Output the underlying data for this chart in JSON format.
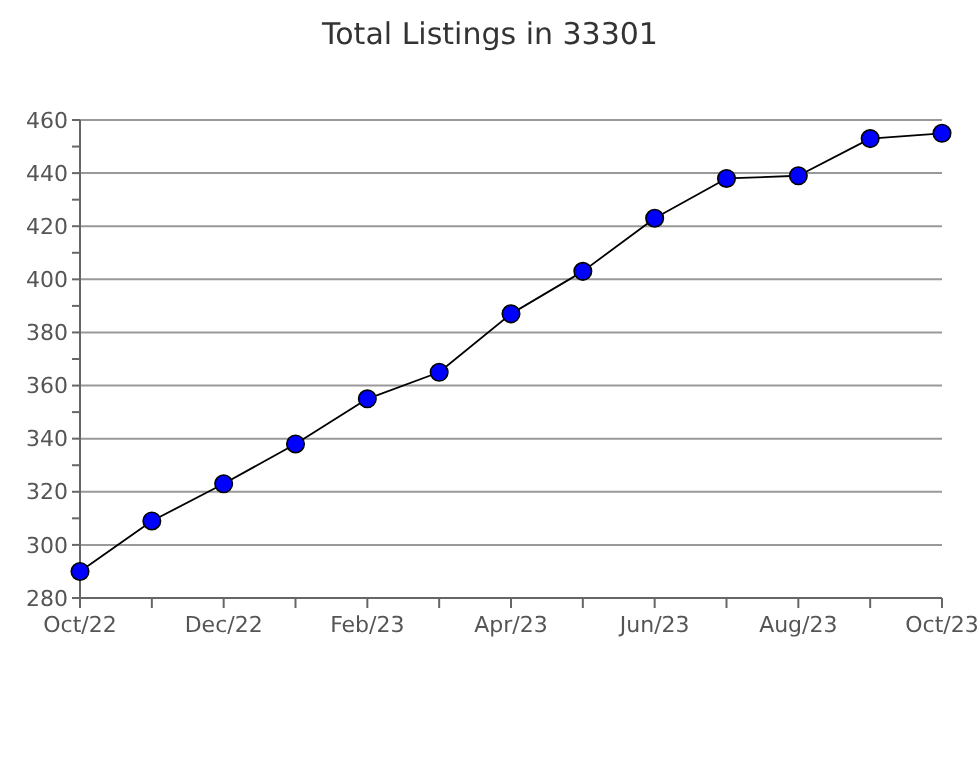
{
  "chart_data": {
    "type": "line",
    "title": "Total Listings in 33301",
    "categories": [
      "Oct/22",
      null,
      "Dec/22",
      null,
      "Feb/23",
      null,
      "Apr/23",
      null,
      "Jun/23",
      null,
      "Aug/23",
      null,
      "Oct/23"
    ],
    "series": [
      {
        "color": "#0000ff",
        "values": [
          290,
          309,
          323,
          338,
          355,
          365,
          387,
          403,
          423,
          438,
          439,
          453,
          455
        ]
      }
    ],
    "ylim": [
      280,
      460
    ],
    "yticks": [
      280,
      {
        "value": 290,
        "label": null
      },
      300,
      {
        "value": 310,
        "label": null
      },
      320,
      {
        "value": 330,
        "label": null
      },
      340,
      {
        "value": 350,
        "label": null
      },
      360,
      {
        "value": 370,
        "label": null
      },
      380,
      {
        "value": 390,
        "label": null
      },
      400,
      {
        "value": 410,
        "label": null
      },
      420,
      {
        "value": 430,
        "label": null
      },
      440,
      {
        "value": 450,
        "label": null
      },
      460
    ],
    "grid": "y",
    "marker": "circle",
    "line_style": "solid"
  }
}
